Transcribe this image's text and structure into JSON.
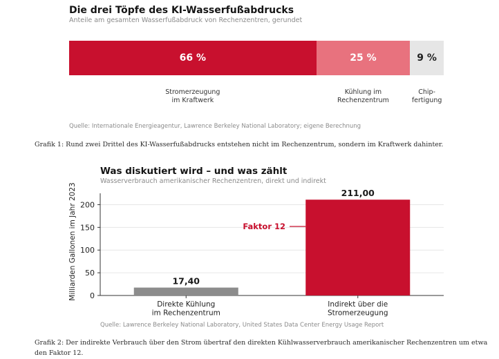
{
  "chart_data": [
    {
      "type": "bar",
      "stacked": true,
      "orientation": "horizontal",
      "title": "Die drei Töpfe des KI-Wasserfußabdrucks",
      "subtitle": "Anteile am gesamten Wasserfußabdruck von Rechenzentren, gerundet",
      "segments": [
        {
          "label": "Stromerzeugung\nim Kraftwerk",
          "value": 66,
          "value_label": "66 %",
          "color": "#c8102e",
          "text_color": "#ffffff"
        },
        {
          "label": "Kühlung im\nRechenzentrum",
          "value": 25,
          "value_label": "25 %",
          "color": "#e8727e",
          "text_color": "#ffffff"
        },
        {
          "label": "Chip-\nfertigung",
          "value": 9,
          "value_label": "9 %",
          "color": "#e6e6e6",
          "text_color": "#222222"
        }
      ],
      "source": "Quelle: Internationale Energieagentur, Lawrence Berkeley National Laboratory; eigene Berechnung",
      "caption": "Grafik 1: Rund zwei Drittel des KI-Wasserfußabdrucks entstehen nicht im Rechenzentrum, sondern im Kraftwerk dahinter."
    },
    {
      "type": "bar",
      "title": "Was diskutiert wird – und was zählt",
      "subtitle": "Wasserverbrauch amerikanischer Rechenzentren, direkt und indirekt",
      "ylabel": "Milliarden Gallonen im Jahr 2023",
      "ylim": [
        0,
        225
      ],
      "yticks": [
        0,
        50,
        100,
        150,
        200
      ],
      "grid": true,
      "categories": [
        "Direkte Kühlung\nim Rechenzentrum",
        "Indirekt über die\nStromerzeugung"
      ],
      "values": [
        17.4,
        211.0
      ],
      "value_labels": [
        "17,40",
        "211,00"
      ],
      "colors": [
        "#8c8c8c",
        "#c8102e"
      ],
      "annotation": "Faktor 12",
      "annotation_color": "#c8102e",
      "source": "Quelle: Lawrence Berkeley National Laboratory, United States Data Center Energy Usage Report",
      "caption": "Grafik 2: Der indirekte Verbrauch über den Strom übertraf den direkten Kühlwasserverbrauch amerikanischer Rechenzentren um etwa den Faktor 12."
    }
  ]
}
